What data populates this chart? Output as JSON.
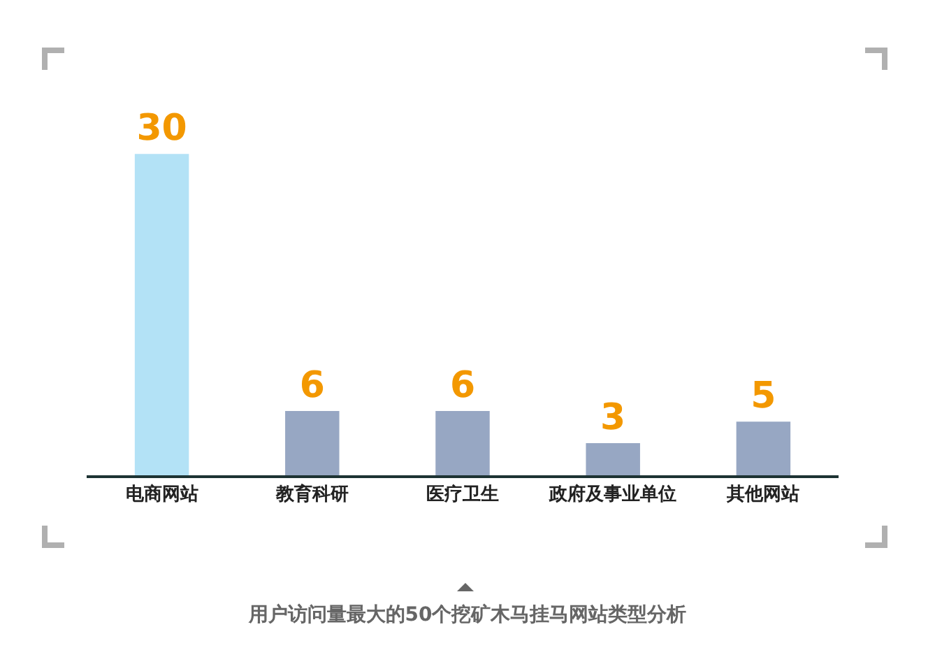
{
  "chart_data": {
    "type": "bar",
    "title": "用户访问量最大的50个挖矿木马挂马网站类型分析",
    "categories": [
      "电商网站",
      "教育科研",
      "医疗卫生",
      "政府及事业单位",
      "其他网站"
    ],
    "values": [
      30,
      6,
      6,
      3,
      5
    ],
    "colors": [
      "#b3e2f6",
      "#97a7c3",
      "#97a7c3",
      "#97a7c3",
      "#97a7c3"
    ],
    "data_labels": true
  }
}
